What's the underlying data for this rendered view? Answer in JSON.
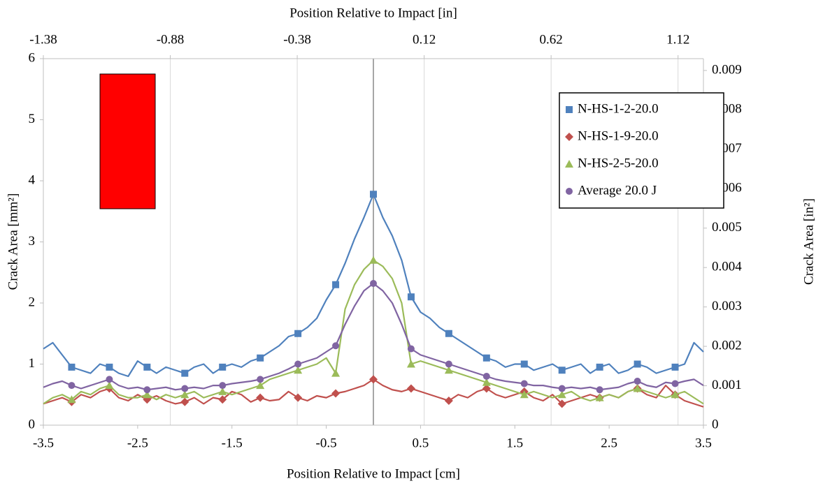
{
  "chart_data": {
    "type": "line",
    "xlabel": "Position Relative to Impact [cm]",
    "x2label": "Position Relative to Impact [in]",
    "ylabel": "Crack Area [mm²]",
    "y2label": "Crack Area [in²]",
    "xlim": [
      -3.5,
      3.5
    ],
    "xticks": [
      -3.5,
      -2.5,
      -1.5,
      -0.5,
      0.5,
      1.5,
      2.5,
      3.5
    ],
    "x2lim": [
      -1.38,
      1.22
    ],
    "x2ticks": [
      -1.38,
      -0.88,
      -0.38,
      0.12,
      0.62,
      1.12
    ],
    "ylim": [
      0,
      6
    ],
    "yticks": [
      0,
      1,
      2,
      3,
      4,
      5,
      6
    ],
    "y2lim": [
      0,
      0.0093
    ],
    "y2ticks": [
      0,
      0.001,
      0.002,
      0.003,
      0.004,
      0.005,
      0.006,
      0.007,
      0.008,
      0.009
    ],
    "grid": true,
    "legend": "upper right",
    "x": [
      -3.5,
      -3.4,
      -3.3,
      -3.2,
      -3.1,
      -3.0,
      -2.9,
      -2.8,
      -2.7,
      -2.6,
      -2.5,
      -2.4,
      -2.3,
      -2.2,
      -2.1,
      -2.0,
      -1.9,
      -1.8,
      -1.7,
      -1.6,
      -1.5,
      -1.4,
      -1.3,
      -1.2,
      -1.1,
      -1.0,
      -0.9,
      -0.8,
      -0.7,
      -0.6,
      -0.5,
      -0.4,
      -0.3,
      -0.2,
      -0.1,
      0,
      0.1,
      0.2,
      0.3,
      0.4,
      0.5,
      0.6,
      0.7,
      0.8,
      0.9,
      1.0,
      1.1,
      1.2,
      1.3,
      1.4,
      1.5,
      1.6,
      1.7,
      1.8,
      1.9,
      2.0,
      2.1,
      2.2,
      2.3,
      2.4,
      2.5,
      2.6,
      2.7,
      2.8,
      2.9,
      3.0,
      3.1,
      3.2,
      3.3,
      3.4,
      3.5
    ],
    "series": [
      {
        "name": "N-HS-1-2-20.0",
        "color": "#4f81bd",
        "marker": "square",
        "values": [
          1.25,
          1.35,
          1.15,
          0.95,
          0.9,
          0.85,
          1.0,
          0.95,
          0.85,
          0.8,
          1.05,
          0.95,
          0.85,
          0.95,
          0.9,
          0.85,
          0.95,
          1.0,
          0.85,
          0.95,
          1.0,
          0.95,
          1.05,
          1.1,
          1.2,
          1.3,
          1.45,
          1.5,
          1.6,
          1.75,
          2.05,
          2.3,
          2.65,
          3.05,
          3.4,
          3.78,
          3.4,
          3.1,
          2.7,
          2.1,
          1.85,
          1.75,
          1.6,
          1.5,
          1.4,
          1.3,
          1.2,
          1.1,
          1.05,
          0.95,
          1.0,
          1.0,
          0.9,
          0.95,
          1.0,
          0.9,
          0.95,
          1.0,
          0.85,
          0.95,
          1.0,
          0.85,
          0.9,
          1.0,
          0.95,
          0.85,
          0.9,
          0.95,
          1.0,
          1.35,
          1.2
        ]
      },
      {
        "name": "N-HS-1-9-20.0",
        "color": "#c0504d",
        "marker": "diamond",
        "values": [
          0.35,
          0.4,
          0.45,
          0.38,
          0.5,
          0.45,
          0.55,
          0.6,
          0.45,
          0.4,
          0.5,
          0.42,
          0.48,
          0.4,
          0.35,
          0.38,
          0.45,
          0.35,
          0.45,
          0.42,
          0.55,
          0.5,
          0.38,
          0.45,
          0.4,
          0.42,
          0.55,
          0.45,
          0.4,
          0.48,
          0.45,
          0.52,
          0.55,
          0.6,
          0.65,
          0.75,
          0.65,
          0.58,
          0.55,
          0.6,
          0.55,
          0.5,
          0.45,
          0.4,
          0.5,
          0.45,
          0.55,
          0.6,
          0.5,
          0.45,
          0.5,
          0.55,
          0.45,
          0.4,
          0.5,
          0.35,
          0.4,
          0.45,
          0.5,
          0.45,
          0.5,
          0.45,
          0.55,
          0.6,
          0.5,
          0.45,
          0.65,
          0.5,
          0.4,
          0.35,
          0.3
        ]
      },
      {
        "name": "N-HS-2-5-20.0",
        "color": "#9bbb59",
        "marker": "triangle",
        "values": [
          0.35,
          0.45,
          0.5,
          0.42,
          0.55,
          0.5,
          0.6,
          0.65,
          0.5,
          0.45,
          0.45,
          0.5,
          0.42,
          0.5,
          0.45,
          0.5,
          0.55,
          0.45,
          0.5,
          0.55,
          0.5,
          0.55,
          0.6,
          0.65,
          0.75,
          0.8,
          0.85,
          0.9,
          0.95,
          1.0,
          1.1,
          0.85,
          1.9,
          2.3,
          2.55,
          2.7,
          2.6,
          2.4,
          2.0,
          1.0,
          1.05,
          1.0,
          0.95,
          0.9,
          0.85,
          0.8,
          0.75,
          0.7,
          0.65,
          0.6,
          0.55,
          0.5,
          0.55,
          0.5,
          0.45,
          0.5,
          0.55,
          0.45,
          0.4,
          0.45,
          0.5,
          0.45,
          0.55,
          0.6,
          0.55,
          0.5,
          0.45,
          0.5,
          0.55,
          0.45,
          0.35
        ]
      },
      {
        "name": "Average 20.0 J",
        "color": "#8064a2",
        "marker": "circle",
        "values": [
          0.62,
          0.68,
          0.72,
          0.65,
          0.6,
          0.65,
          0.7,
          0.75,
          0.65,
          0.6,
          0.62,
          0.58,
          0.6,
          0.62,
          0.58,
          0.6,
          0.62,
          0.6,
          0.65,
          0.65,
          0.68,
          0.7,
          0.72,
          0.75,
          0.8,
          0.85,
          0.92,
          1.0,
          1.05,
          1.1,
          1.2,
          1.3,
          1.65,
          1.95,
          2.2,
          2.32,
          2.2,
          2.0,
          1.65,
          1.25,
          1.15,
          1.1,
          1.05,
          1.0,
          0.95,
          0.9,
          0.85,
          0.8,
          0.75,
          0.72,
          0.7,
          0.68,
          0.65,
          0.65,
          0.62,
          0.6,
          0.62,
          0.6,
          0.62,
          0.58,
          0.6,
          0.62,
          0.68,
          0.72,
          0.65,
          0.62,
          0.7,
          0.68,
          0.72,
          0.75,
          0.65
        ]
      }
    ]
  }
}
